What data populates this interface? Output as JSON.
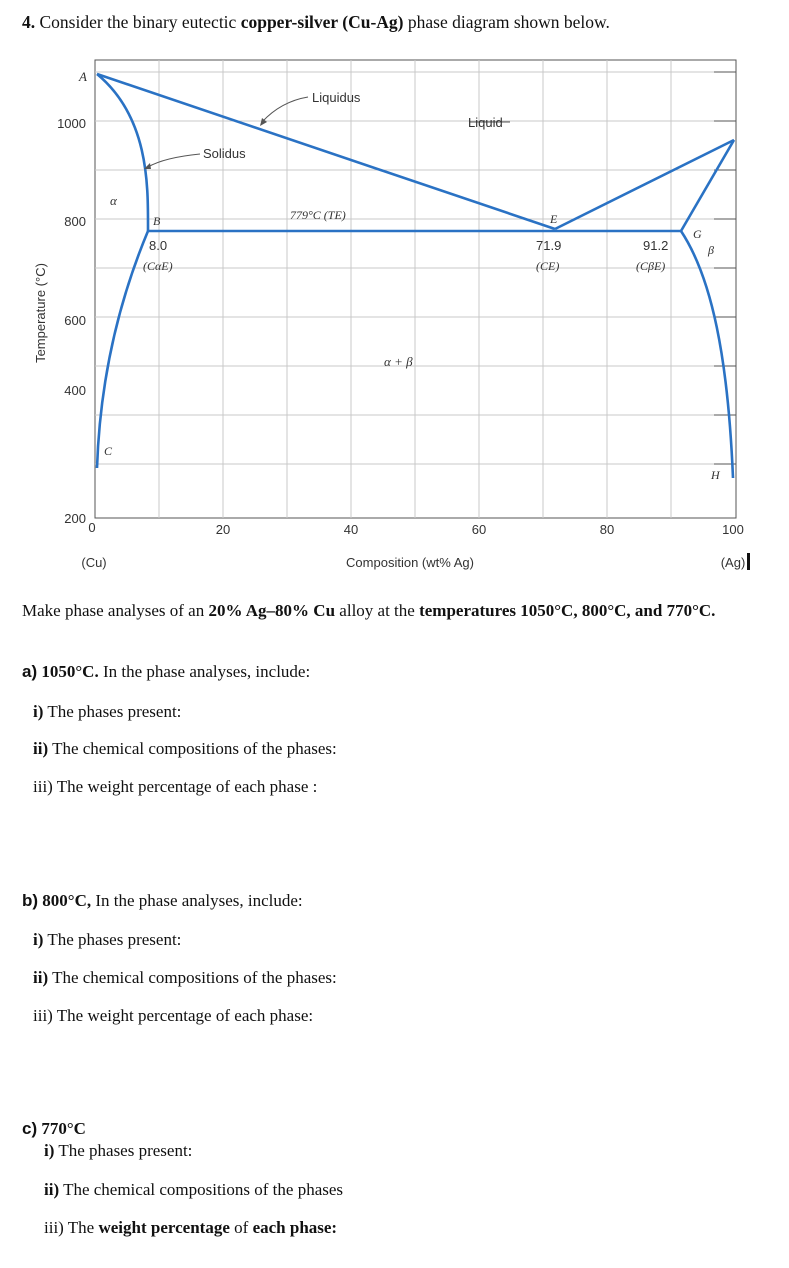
{
  "question": {
    "number": "4.",
    "pre": "Consider the binary eutectic",
    "bold": "copper-silver (Cu-Ag)",
    "post": "phase diagram shown below."
  },
  "diagram": {
    "y_axis_label": "Temperature (°C)",
    "x_axis_label": "Composition (wt% Ag)",
    "x_ticks": [
      "0",
      "20",
      "40",
      "60",
      "80",
      "100"
    ],
    "y_ticks": [
      "1000",
      "800",
      "600",
      "400",
      "200"
    ],
    "x_end_left": "(Cu)",
    "x_end_right": "(Ag)",
    "labels": {
      "liquidus": "Liquidus",
      "solidus": "Solidus",
      "liquid": "Liquid",
      "alpha": "α",
      "beta": "β",
      "alpha_beta": "α + β",
      "A": "A",
      "B": "B",
      "C": "C",
      "E": "E",
      "G": "G",
      "H": "H",
      "te": "779°C (TE)",
      "b_value": "8.0",
      "b_sub": "(CαE)",
      "e_value": "71.9",
      "e_sub": "(CE)",
      "g_value": "91.2",
      "g_sub": "(CβE)"
    },
    "colors": {
      "phase_line": "#2a72c4",
      "grid": "#c8c8c8",
      "axis": "#555555"
    }
  },
  "intro": {
    "pre": "Make phase analyses of an",
    "alloy": "20% Ag–80% Cu",
    "mid": "alloy at the",
    "temps": "temperatures 1050°C, 800°C, and 770°C."
  },
  "parts": [
    {
      "label": "a)",
      "temp": "1050°C.",
      "rest": "In the phase analyses, include:",
      "items": [
        {
          "num": "i)",
          "text": "The phases present:"
        },
        {
          "num": "ii)",
          "text": "The chemical compositions of the phases:"
        },
        {
          "num": "iii)",
          "text": "The weight percentage of each phase :"
        }
      ]
    },
    {
      "label": "b)",
      "temp": "800°C,",
      "rest": "In the phase analyses, include:",
      "items": [
        {
          "num": "i)",
          "text": "The phases present:"
        },
        {
          "num": "ii)",
          "text": "The chemical compositions of the phases:"
        },
        {
          "num": "iii)",
          "text": "The weight percentage of each phase:"
        }
      ]
    },
    {
      "label": "c)",
      "temp": "770°C",
      "items": [
        {
          "num": "i)",
          "text": "The phases present:"
        },
        {
          "num": "ii)",
          "text": "The chemical compositions of the phases"
        },
        {
          "num": "iii)",
          "text": "The",
          "bold1": "weight percentage",
          "mid": "of",
          "bold2": "each phase:"
        }
      ]
    }
  ]
}
